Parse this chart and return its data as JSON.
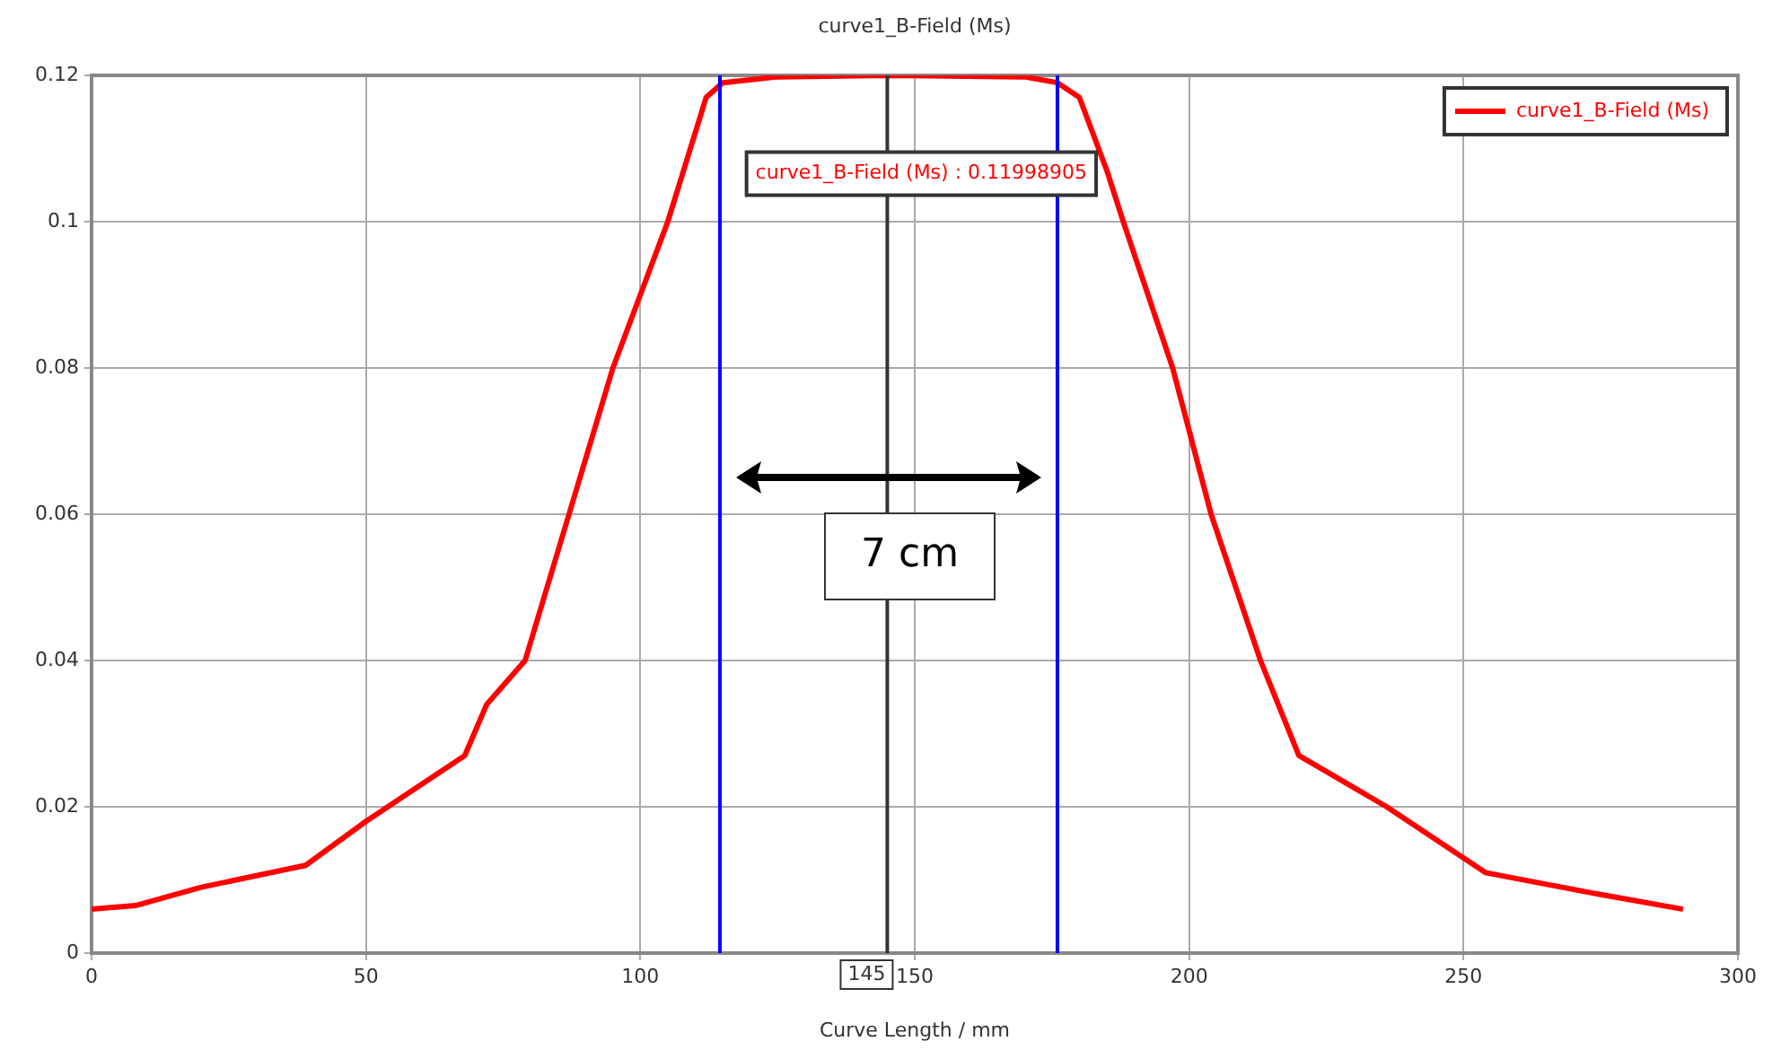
{
  "chart_data": {
    "type": "line",
    "title": "curve1_B-Field (Ms)",
    "xlabel": "Curve Length / mm",
    "series": [
      {
        "name": "curve1_B-Field (Ms)",
        "color": "#ff0000",
        "x": [
          0,
          8,
          20,
          39,
          50,
          60,
          68,
          72,
          79,
          87,
          95,
          105,
          112,
          115,
          125,
          145,
          170,
          176,
          180,
          185,
          188,
          197,
          204,
          213,
          220,
          236,
          254,
          275,
          290
        ],
        "values": [
          0.006,
          0.0065,
          0.009,
          0.012,
          0.018,
          0.023,
          0.027,
          0.034,
          0.04,
          0.06,
          0.08,
          0.1,
          0.117,
          0.119,
          0.1198,
          0.12,
          0.1198,
          0.119,
          0.117,
          0.107,
          0.1,
          0.08,
          0.06,
          0.04,
          0.027,
          0.02,
          0.011,
          0.008,
          0.006
        ]
      }
    ],
    "xlim": [
      0,
      300
    ],
    "xticks": [
      0,
      50,
      100,
      150,
      200,
      250,
      300
    ],
    "ylim": [
      0,
      0.12
    ],
    "yticks": [
      0,
      0.02,
      0.04,
      0.06,
      0.08,
      0.1,
      0.12
    ],
    "ref_lines": [
      {
        "axis": "x",
        "value": 114.5,
        "color": "#0000ff"
      },
      {
        "axis": "x",
        "value": 176,
        "color": "#0000ff"
      },
      {
        "axis": "x",
        "value": 145,
        "label": "145",
        "color": "#333333"
      }
    ],
    "annotations": [
      "curve1_B-Field (Ms) : 0.11998905",
      "7 cm"
    ],
    "grid": true,
    "legend": "top right",
    "marker": "none",
    "line_style": "solid"
  }
}
